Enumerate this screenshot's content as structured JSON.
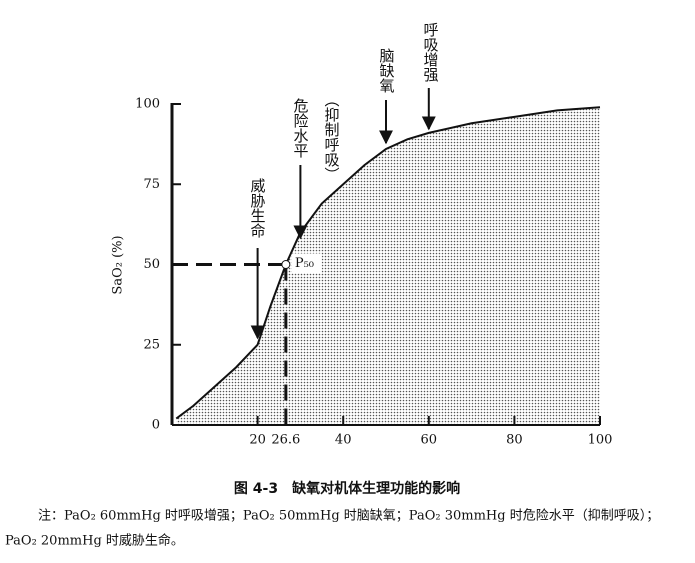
{
  "chart_data": {
    "type": "area",
    "x": [
      1,
      5,
      10,
      15,
      20,
      23,
      26.6,
      30,
      35,
      40,
      45,
      50,
      55,
      60,
      70,
      80,
      90,
      100
    ],
    "values": [
      2,
      6,
      12,
      18,
      25,
      37,
      50,
      60,
      69,
      75,
      81,
      86,
      89,
      91,
      94,
      96,
      98,
      99
    ],
    "xlim": [
      0,
      100
    ],
    "ylim": [
      0,
      100
    ],
    "xticks": [
      20,
      26.6,
      40,
      60,
      80,
      100
    ],
    "yticks": [
      0,
      25,
      50,
      75,
      100
    ],
    "ylabel": "SaO₂ (%)",
    "p50": {
      "label": "P₅₀",
      "x": 26.6,
      "y": 50
    },
    "annotations": [
      {
        "text": "威胁生命",
        "x": 20
      },
      {
        "text": "危险水平",
        "x": 30
      },
      {
        "text": "（抑制呼吸）"
      },
      {
        "text": "脑缺氧",
        "x": 50
      },
      {
        "text": "呼吸增强",
        "x": 60
      }
    ],
    "caption": "图 4-3　缺氧对机体生理功能的影响",
    "note": [
      "注：PaO₂ 60mmHg 时呼吸增强；PaO₂ 50mmHg 时脑缺氧；PaO₂ 30mmHg 时危险水平（抑制呼吸）；",
      "PaO₂ 20mmHg 时威胁生命。"
    ]
  }
}
